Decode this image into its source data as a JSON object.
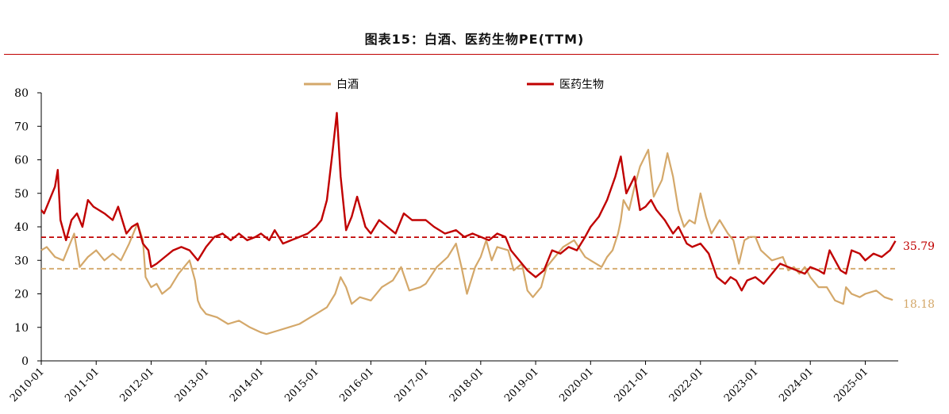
{
  "title": "图表15：白酒、医药生物PE(TTM)",
  "chart_data": {
    "type": "line",
    "title": "图表15：白酒、医药生物PE(TTM)",
    "xlabel": "",
    "ylabel": "",
    "ylim": [
      0,
      80
    ],
    "yticks": [
      0,
      10,
      20,
      30,
      40,
      50,
      60,
      70,
      80
    ],
    "xticks": [
      "2010-01",
      "2011-01",
      "2012-01",
      "2013-01",
      "2014-01",
      "2015-01",
      "2016-01",
      "2017-01",
      "2018-01",
      "2019-01",
      "2020-01",
      "2021-01",
      "2022-01",
      "2023-01",
      "2024-01",
      "2025-01"
    ],
    "legend_position": "top",
    "series": [
      {
        "name": "白酒",
        "color": "#d4a86a",
        "end_label": "18.18",
        "points": [
          [
            2010.0,
            33
          ],
          [
            2010.1,
            34
          ],
          [
            2010.25,
            31
          ],
          [
            2010.4,
            30
          ],
          [
            2010.5,
            34
          ],
          [
            2010.6,
            38
          ],
          [
            2010.7,
            28
          ],
          [
            2010.85,
            31
          ],
          [
            2011.0,
            33
          ],
          [
            2011.15,
            30
          ],
          [
            2011.3,
            32
          ],
          [
            2011.45,
            30
          ],
          [
            2011.6,
            35
          ],
          [
            2011.75,
            41
          ],
          [
            2011.85,
            36
          ],
          [
            2011.9,
            25
          ],
          [
            2012.0,
            22
          ],
          [
            2012.1,
            23
          ],
          [
            2012.2,
            20
          ],
          [
            2012.35,
            22
          ],
          [
            2012.5,
            26
          ],
          [
            2012.6,
            28
          ],
          [
            2012.7,
            30
          ],
          [
            2012.8,
            24
          ],
          [
            2012.85,
            18
          ],
          [
            2012.9,
            16
          ],
          [
            2013.0,
            14
          ],
          [
            2013.2,
            13
          ],
          [
            2013.4,
            11
          ],
          [
            2013.6,
            12
          ],
          [
            2013.8,
            10
          ],
          [
            2014.0,
            8.5
          ],
          [
            2014.1,
            8
          ],
          [
            2014.3,
            9
          ],
          [
            2014.5,
            10
          ],
          [
            2014.7,
            11
          ],
          [
            2014.9,
            13
          ],
          [
            2015.0,
            14
          ],
          [
            2015.2,
            16
          ],
          [
            2015.35,
            20
          ],
          [
            2015.45,
            25
          ],
          [
            2015.55,
            22
          ],
          [
            2015.65,
            17
          ],
          [
            2015.8,
            19
          ],
          [
            2016.0,
            18
          ],
          [
            2016.2,
            22
          ],
          [
            2016.4,
            24
          ],
          [
            2016.55,
            28
          ],
          [
            2016.7,
            21
          ],
          [
            2016.9,
            22
          ],
          [
            2017.0,
            23
          ],
          [
            2017.2,
            28
          ],
          [
            2017.4,
            31
          ],
          [
            2017.55,
            35
          ],
          [
            2017.65,
            28
          ],
          [
            2017.75,
            20
          ],
          [
            2017.9,
            28
          ],
          [
            2018.0,
            31
          ],
          [
            2018.1,
            36
          ],
          [
            2018.2,
            30
          ],
          [
            2018.3,
            34
          ],
          [
            2018.5,
            33
          ],
          [
            2018.6,
            27
          ],
          [
            2018.75,
            29
          ],
          [
            2018.85,
            21
          ],
          [
            2018.95,
            19
          ],
          [
            2019.1,
            22
          ],
          [
            2019.2,
            28
          ],
          [
            2019.35,
            31
          ],
          [
            2019.5,
            34
          ],
          [
            2019.7,
            36
          ],
          [
            2019.9,
            31
          ],
          [
            2020.0,
            30
          ],
          [
            2020.2,
            28
          ],
          [
            2020.3,
            31
          ],
          [
            2020.4,
            33
          ],
          [
            2020.5,
            38
          ],
          [
            2020.55,
            42
          ],
          [
            2020.6,
            48
          ],
          [
            2020.7,
            45
          ],
          [
            2020.8,
            52
          ],
          [
            2020.9,
            58
          ],
          [
            2021.05,
            63
          ],
          [
            2021.15,
            49
          ],
          [
            2021.3,
            54
          ],
          [
            2021.4,
            62
          ],
          [
            2021.5,
            55
          ],
          [
            2021.6,
            45
          ],
          [
            2021.7,
            40
          ],
          [
            2021.8,
            42
          ],
          [
            2021.9,
            41
          ],
          [
            2022.0,
            50
          ],
          [
            2022.1,
            43
          ],
          [
            2022.2,
            38
          ],
          [
            2022.35,
            42
          ],
          [
            2022.5,
            38
          ],
          [
            2022.6,
            36
          ],
          [
            2022.7,
            29
          ],
          [
            2022.8,
            36
          ],
          [
            2022.9,
            37
          ],
          [
            2023.0,
            37
          ],
          [
            2023.1,
            33
          ],
          [
            2023.3,
            30
          ],
          [
            2023.5,
            31
          ],
          [
            2023.6,
            27
          ],
          [
            2023.7,
            28
          ],
          [
            2023.8,
            26
          ],
          [
            2023.9,
            28
          ],
          [
            2024.0,
            25
          ],
          [
            2024.15,
            22
          ],
          [
            2024.3,
            22
          ],
          [
            2024.45,
            18
          ],
          [
            2024.6,
            17
          ],
          [
            2024.65,
            22
          ],
          [
            2024.75,
            20
          ],
          [
            2024.9,
            19
          ],
          [
            2025.0,
            20
          ],
          [
            2025.2,
            21
          ],
          [
            2025.35,
            19
          ],
          [
            2025.5,
            18.18
          ]
        ]
      },
      {
        "name": "医药生物",
        "color": "#c00000",
        "end_label": "35.79",
        "points": [
          [
            2010.0,
            45
          ],
          [
            2010.05,
            44
          ],
          [
            2010.15,
            48
          ],
          [
            2010.25,
            52
          ],
          [
            2010.3,
            57
          ],
          [
            2010.35,
            42
          ],
          [
            2010.45,
            36
          ],
          [
            2010.55,
            42
          ],
          [
            2010.65,
            44
          ],
          [
            2010.75,
            40
          ],
          [
            2010.85,
            48
          ],
          [
            2010.95,
            46
          ],
          [
            2011.05,
            45
          ],
          [
            2011.15,
            44
          ],
          [
            2011.3,
            42
          ],
          [
            2011.4,
            46
          ],
          [
            2011.55,
            38
          ],
          [
            2011.65,
            40
          ],
          [
            2011.75,
            41
          ],
          [
            2011.85,
            35
          ],
          [
            2011.95,
            33
          ],
          [
            2012.0,
            28
          ],
          [
            2012.1,
            29
          ],
          [
            2012.25,
            31
          ],
          [
            2012.4,
            33
          ],
          [
            2012.55,
            34
          ],
          [
            2012.7,
            33
          ],
          [
            2012.85,
            30
          ],
          [
            2013.0,
            34
          ],
          [
            2013.15,
            37
          ],
          [
            2013.3,
            38
          ],
          [
            2013.45,
            36
          ],
          [
            2013.6,
            38
          ],
          [
            2013.75,
            36
          ],
          [
            2013.9,
            37
          ],
          [
            2014.0,
            38
          ],
          [
            2014.15,
            36
          ],
          [
            2014.25,
            39
          ],
          [
            2014.4,
            35
          ],
          [
            2014.55,
            36
          ],
          [
            2014.7,
            37
          ],
          [
            2014.85,
            38
          ],
          [
            2015.0,
            40
          ],
          [
            2015.1,
            42
          ],
          [
            2015.2,
            48
          ],
          [
            2015.3,
            62
          ],
          [
            2015.38,
            74
          ],
          [
            2015.45,
            55
          ],
          [
            2015.55,
            39
          ],
          [
            2015.65,
            43
          ],
          [
            2015.75,
            49
          ],
          [
            2015.9,
            40
          ],
          [
            2016.0,
            38
          ],
          [
            2016.15,
            42
          ],
          [
            2016.3,
            40
          ],
          [
            2016.45,
            38
          ],
          [
            2016.6,
            44
          ],
          [
            2016.75,
            42
          ],
          [
            2016.9,
            42
          ],
          [
            2017.0,
            42
          ],
          [
            2017.15,
            40
          ],
          [
            2017.35,
            38
          ],
          [
            2017.55,
            39
          ],
          [
            2017.7,
            37
          ],
          [
            2017.85,
            38
          ],
          [
            2018.0,
            37
          ],
          [
            2018.15,
            36
          ],
          [
            2018.3,
            38
          ],
          [
            2018.45,
            37
          ],
          [
            2018.55,
            33
          ],
          [
            2018.7,
            30
          ],
          [
            2018.85,
            27
          ],
          [
            2019.0,
            25
          ],
          [
            2019.15,
            27
          ],
          [
            2019.3,
            33
          ],
          [
            2019.45,
            32
          ],
          [
            2019.6,
            34
          ],
          [
            2019.75,
            33
          ],
          [
            2019.9,
            37
          ],
          [
            2020.0,
            40
          ],
          [
            2020.15,
            43
          ],
          [
            2020.3,
            48
          ],
          [
            2020.45,
            55
          ],
          [
            2020.55,
            61
          ],
          [
            2020.65,
            50
          ],
          [
            2020.8,
            55
          ],
          [
            2020.9,
            45
          ],
          [
            2021.0,
            46
          ],
          [
            2021.1,
            48
          ],
          [
            2021.2,
            45
          ],
          [
            2021.35,
            42
          ],
          [
            2021.5,
            38
          ],
          [
            2021.6,
            40
          ],
          [
            2021.75,
            35
          ],
          [
            2021.85,
            34
          ],
          [
            2022.0,
            35
          ],
          [
            2022.15,
            32
          ],
          [
            2022.3,
            25
          ],
          [
            2022.45,
            23
          ],
          [
            2022.55,
            25
          ],
          [
            2022.65,
            24
          ],
          [
            2022.75,
            21
          ],
          [
            2022.85,
            24
          ],
          [
            2023.0,
            25
          ],
          [
            2023.15,
            23
          ],
          [
            2023.3,
            26
          ],
          [
            2023.45,
            29
          ],
          [
            2023.6,
            28
          ],
          [
            2023.75,
            27
          ],
          [
            2023.9,
            26
          ],
          [
            2024.0,
            28
          ],
          [
            2024.15,
            27
          ],
          [
            2024.25,
            26
          ],
          [
            2024.35,
            33
          ],
          [
            2024.45,
            30
          ],
          [
            2024.55,
            27
          ],
          [
            2024.65,
            26
          ],
          [
            2024.75,
            33
          ],
          [
            2024.9,
            32
          ],
          [
            2025.0,
            30
          ],
          [
            2025.15,
            32
          ],
          [
            2025.3,
            31
          ],
          [
            2025.45,
            33
          ],
          [
            2025.55,
            35.79
          ]
        ]
      }
    ],
    "reference_lines": [
      {
        "series": "医药生物",
        "value": 36.9,
        "color": "#c00000",
        "style": "dashed"
      },
      {
        "series": "白酒",
        "value": 27.5,
        "color": "#d4a86a",
        "style": "dashed"
      }
    ]
  }
}
